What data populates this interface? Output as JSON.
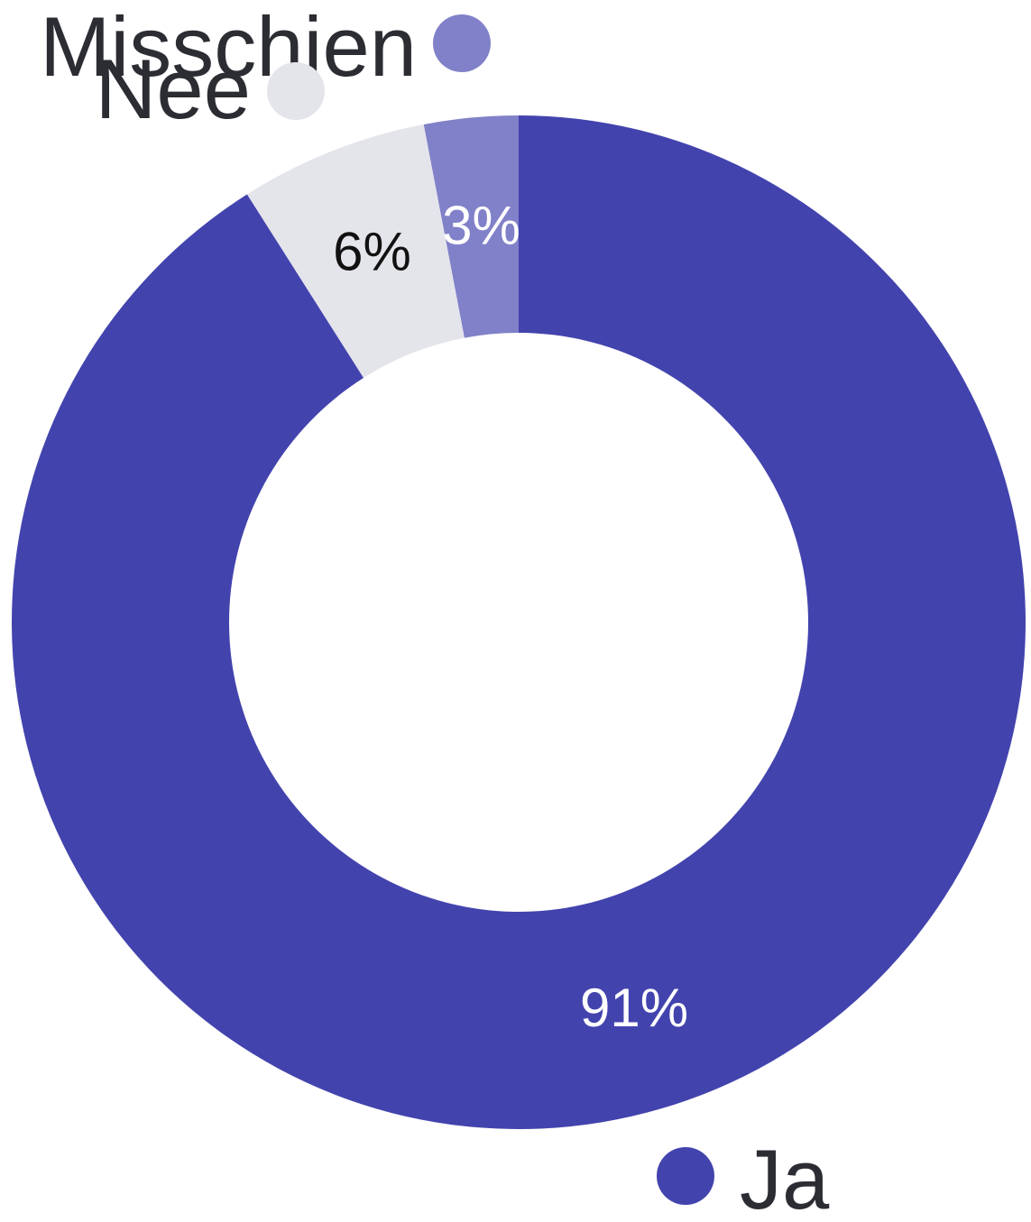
{
  "chart_data": {
    "type": "pie",
    "variant": "donut",
    "categories": [
      "Ja",
      "Nee",
      "Misschien"
    ],
    "values": [
      91,
      6,
      3
    ],
    "labels": [
      "91%",
      "6%",
      "3%"
    ],
    "colors": [
      "#4343ae",
      "#e4e4eb",
      "#8181c9"
    ],
    "label_colors": [
      "#ffffff",
      "#111111",
      "#ffffff"
    ],
    "legend": {
      "items": [
        {
          "name": "Ja",
          "color": "#4343ae"
        },
        {
          "name": "Nee",
          "color": "#e4e4eb"
        },
        {
          "name": "Misschien",
          "color": "#8181c9"
        }
      ]
    }
  }
}
